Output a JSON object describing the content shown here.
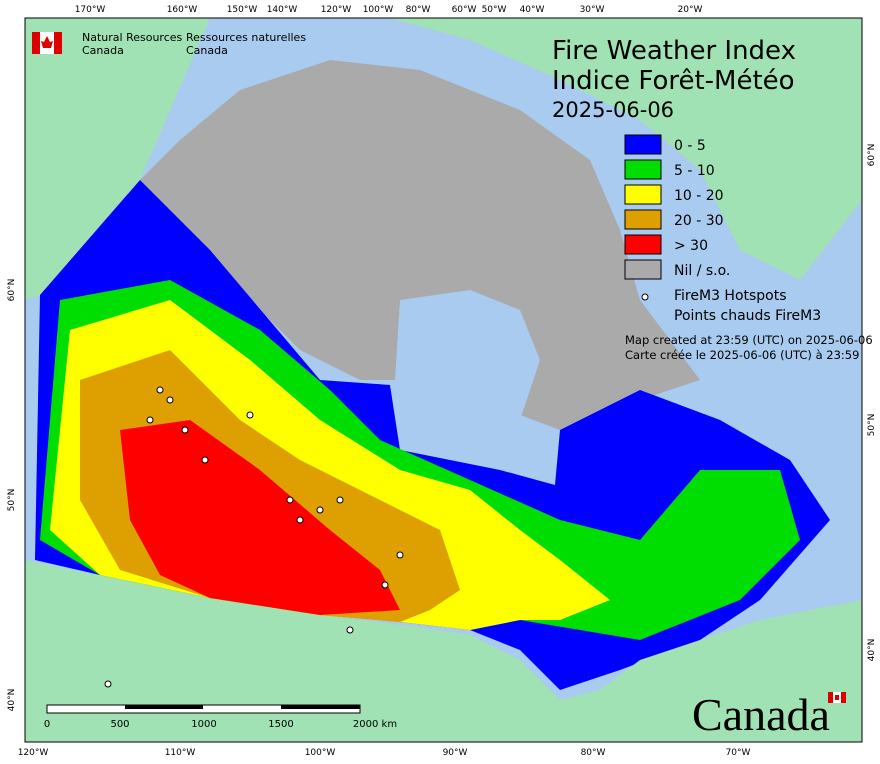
{
  "header": {
    "org_en": [
      "Natural Resources",
      "Canada"
    ],
    "org_fr": [
      "Ressources naturelles",
      "Canada"
    ]
  },
  "title": {
    "line1": "Fire Weather Index",
    "line2": "Indice Forêt-Météo",
    "date": "2025-06-06"
  },
  "legend": [
    {
      "label": "0 - 5",
      "color": "#0000ff"
    },
    {
      "label": "5 - 10",
      "color": "#00dd00"
    },
    {
      "label": "10 - 20",
      "color": "#ffff00"
    },
    {
      "label": "20 - 30",
      "color": "#dda000"
    },
    {
      "label": "> 30",
      "color": "#ff0000"
    },
    {
      "label": "Nil / s.o.",
      "color": "#aaaaaa"
    }
  ],
  "hotspots": {
    "label_en": "FireM3 Hotspots",
    "label_fr": "Points chauds FireM3"
  },
  "created": [
    "Map created at 23:59 (UTC) on 2025-06-06",
    "Carte créée le 2025-06-06 (UTC) à 23:59"
  ],
  "top_labels": [
    "170°W",
    "160°W",
    "150°W",
    "140°W",
    "120°W",
    "100°W",
    "80°W",
    "60°W",
    "50°W",
    "40°W",
    "30°W",
    "20°W"
  ],
  "bottom_labels": [
    "120°W",
    "110°W",
    "100°W",
    "90°W",
    "80°W",
    "70°W"
  ],
  "left_labels": [
    "60°N",
    "50°N",
    "40°N"
  ],
  "right_labels": [
    "60°N",
    "50°N",
    "40°N"
  ],
  "scale_labels": [
    "0",
    "500",
    "1000",
    "1500",
    "2000 km"
  ],
  "wordmark": "Canada"
}
